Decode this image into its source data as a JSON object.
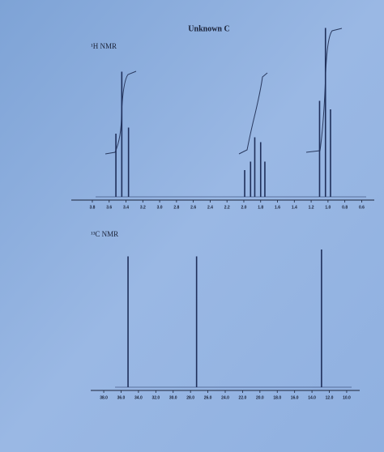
{
  "chart_data": [
    {
      "type": "spectrum",
      "title": "Unknown C",
      "subtitle": "¹H NMR",
      "x": [
        3.52,
        3.45,
        3.37,
        1.99,
        1.92,
        1.87,
        1.8,
        1.75,
        1.1,
        1.03,
        0.97
      ],
      "values": [
        52,
        103,
        57,
        22,
        29,
        49,
        45,
        29,
        79,
        139,
        72
      ],
      "color": "#1f2f5a",
      "xlim": [
        4.05,
        0.45
      ],
      "ylim": [
        0,
        140
      ],
      "xticks": [
        3.8,
        3.6,
        3.4,
        3.2,
        {
          "value": 3.0,
          "label": "3.0"
        },
        2.8,
        2.6,
        2.4,
        2.2,
        {
          "value": 2.0,
          "label": "2.0"
        },
        1.8,
        1.6,
        1.4,
        1.2,
        {
          "value": 1.0,
          "label": "1.0"
        },
        0.8,
        0.6
      ]
    },
    {
      "type": "spectrum",
      "subtitle": "¹³C NMR",
      "x": [
        35.2,
        27.3,
        12.9
      ],
      "values": [
        95,
        95,
        100
      ],
      "color": "#1f2f5a",
      "xlim": [
        39.5,
        8.5
      ],
      "ylim": [
        0,
        100
      ],
      "xticks": [
        {
          "value": 38,
          "label": "38.0"
        },
        {
          "value": 36,
          "label": "36.0"
        },
        {
          "value": 34,
          "label": "34.0"
        },
        {
          "value": 32,
          "label": "32.0"
        },
        {
          "value": 30,
          "label": "30.0"
        },
        {
          "value": 28,
          "label": "28.0"
        },
        {
          "value": 26,
          "label": "26.0"
        },
        {
          "value": 24,
          "label": "24.0"
        },
        {
          "value": 22,
          "label": "22.0"
        },
        {
          "value": 20,
          "label": "20.0"
        },
        {
          "value": 18,
          "label": "18.0"
        },
        {
          "value": 16,
          "label": "16.0"
        },
        {
          "value": 14,
          "label": "14.0"
        },
        {
          "value": 12,
          "label": "12.0"
        },
        {
          "value": 10,
          "label": "10.0"
        }
      ]
    }
  ]
}
